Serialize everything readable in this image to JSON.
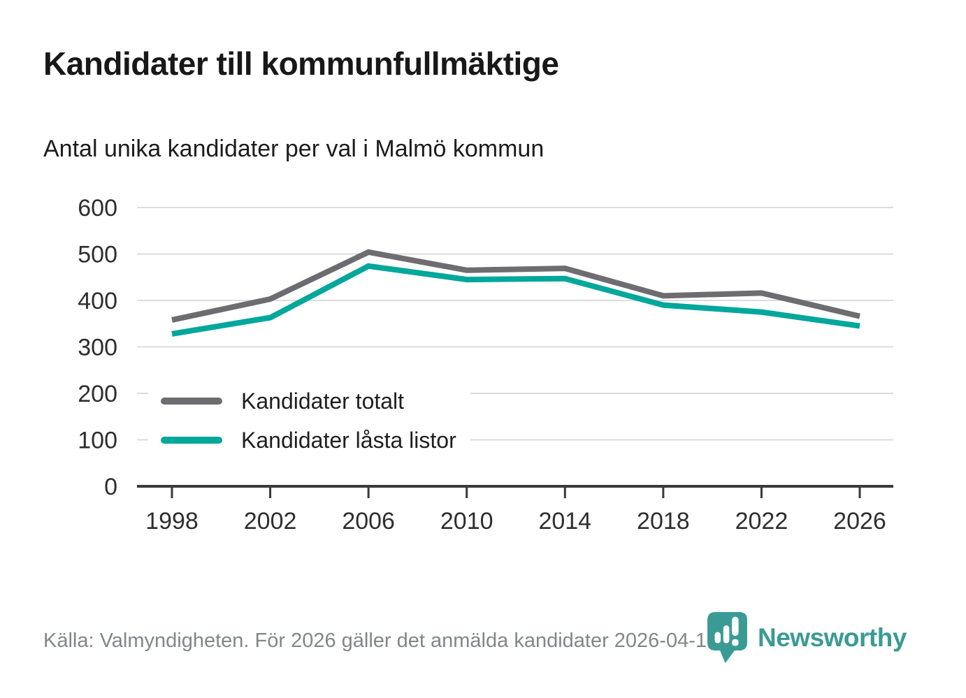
{
  "header": {
    "title": "Kandidater till kommunfullmäktige",
    "subtitle": "Antal unika kandidater per val i Malmö kommun"
  },
  "chart_data": {
    "type": "line",
    "x": [
      "1998",
      "2002",
      "2006",
      "2010",
      "2014",
      "2018",
      "2022",
      "2026"
    ],
    "series": [
      {
        "name": "Kandidater totalt",
        "color": "#6d6d71",
        "values": [
          358,
          403,
          504,
          465,
          469,
          410,
          416,
          366
        ]
      },
      {
        "name": "Kandidater låsta listor",
        "color": "#00a79b",
        "values": [
          328,
          363,
          474,
          445,
          447,
          390,
          375,
          345
        ]
      }
    ],
    "ylim": [
      0,
      600
    ],
    "yticks": [
      0,
      100,
      200,
      300,
      400,
      500,
      600
    ],
    "grid": "horizontal",
    "grid_color": "#dcdcdc",
    "axis_color": "#3a3a3a",
    "legend_position": "inside-lower-left"
  },
  "footer": {
    "source": "Källa: Valmyndigheten. För 2026 gäller det anmälda kandidater 2026-04-10.",
    "brand": "Newsworthy",
    "brand_color": "#3a9b94"
  }
}
